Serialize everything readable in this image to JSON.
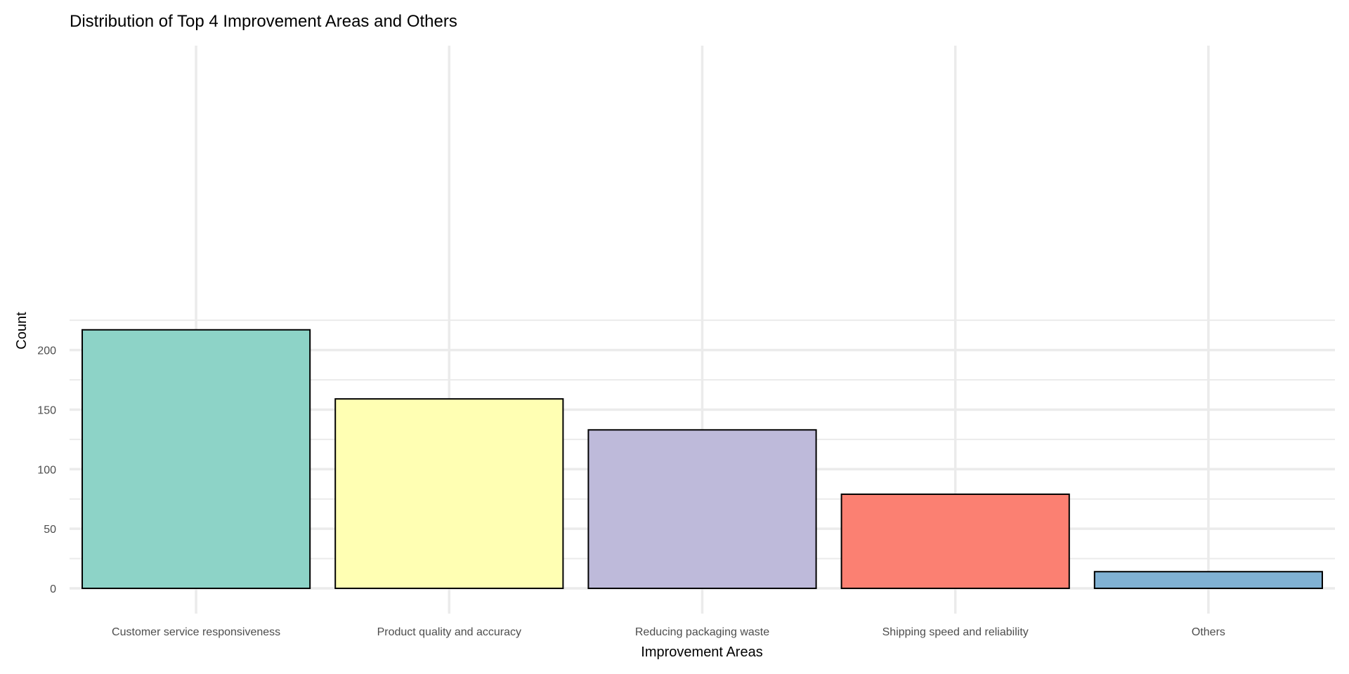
{
  "chart_data": {
    "type": "bar",
    "title": "Distribution of Top 4 Improvement Areas and Others",
    "xlabel": "Improvement Areas",
    "ylabel": "Count",
    "categories": [
      "Customer service responsiveness",
      "Product quality and accuracy",
      "Reducing packaging waste",
      "Shipping speed and reliability",
      "Others"
    ],
    "values": [
      217,
      159,
      133,
      79,
      14
    ],
    "colors": [
      "#8dd3c7",
      "#ffffb3",
      "#bebada",
      "#fb8072",
      "#80b1d3"
    ],
    "ylim": [
      0,
      225
    ],
    "yticks": [
      0,
      50,
      100,
      150,
      200
    ],
    "ytick_labels": [
      "0",
      "50",
      "100",
      "150",
      "200"
    ],
    "grid": true,
    "legend": "none"
  }
}
